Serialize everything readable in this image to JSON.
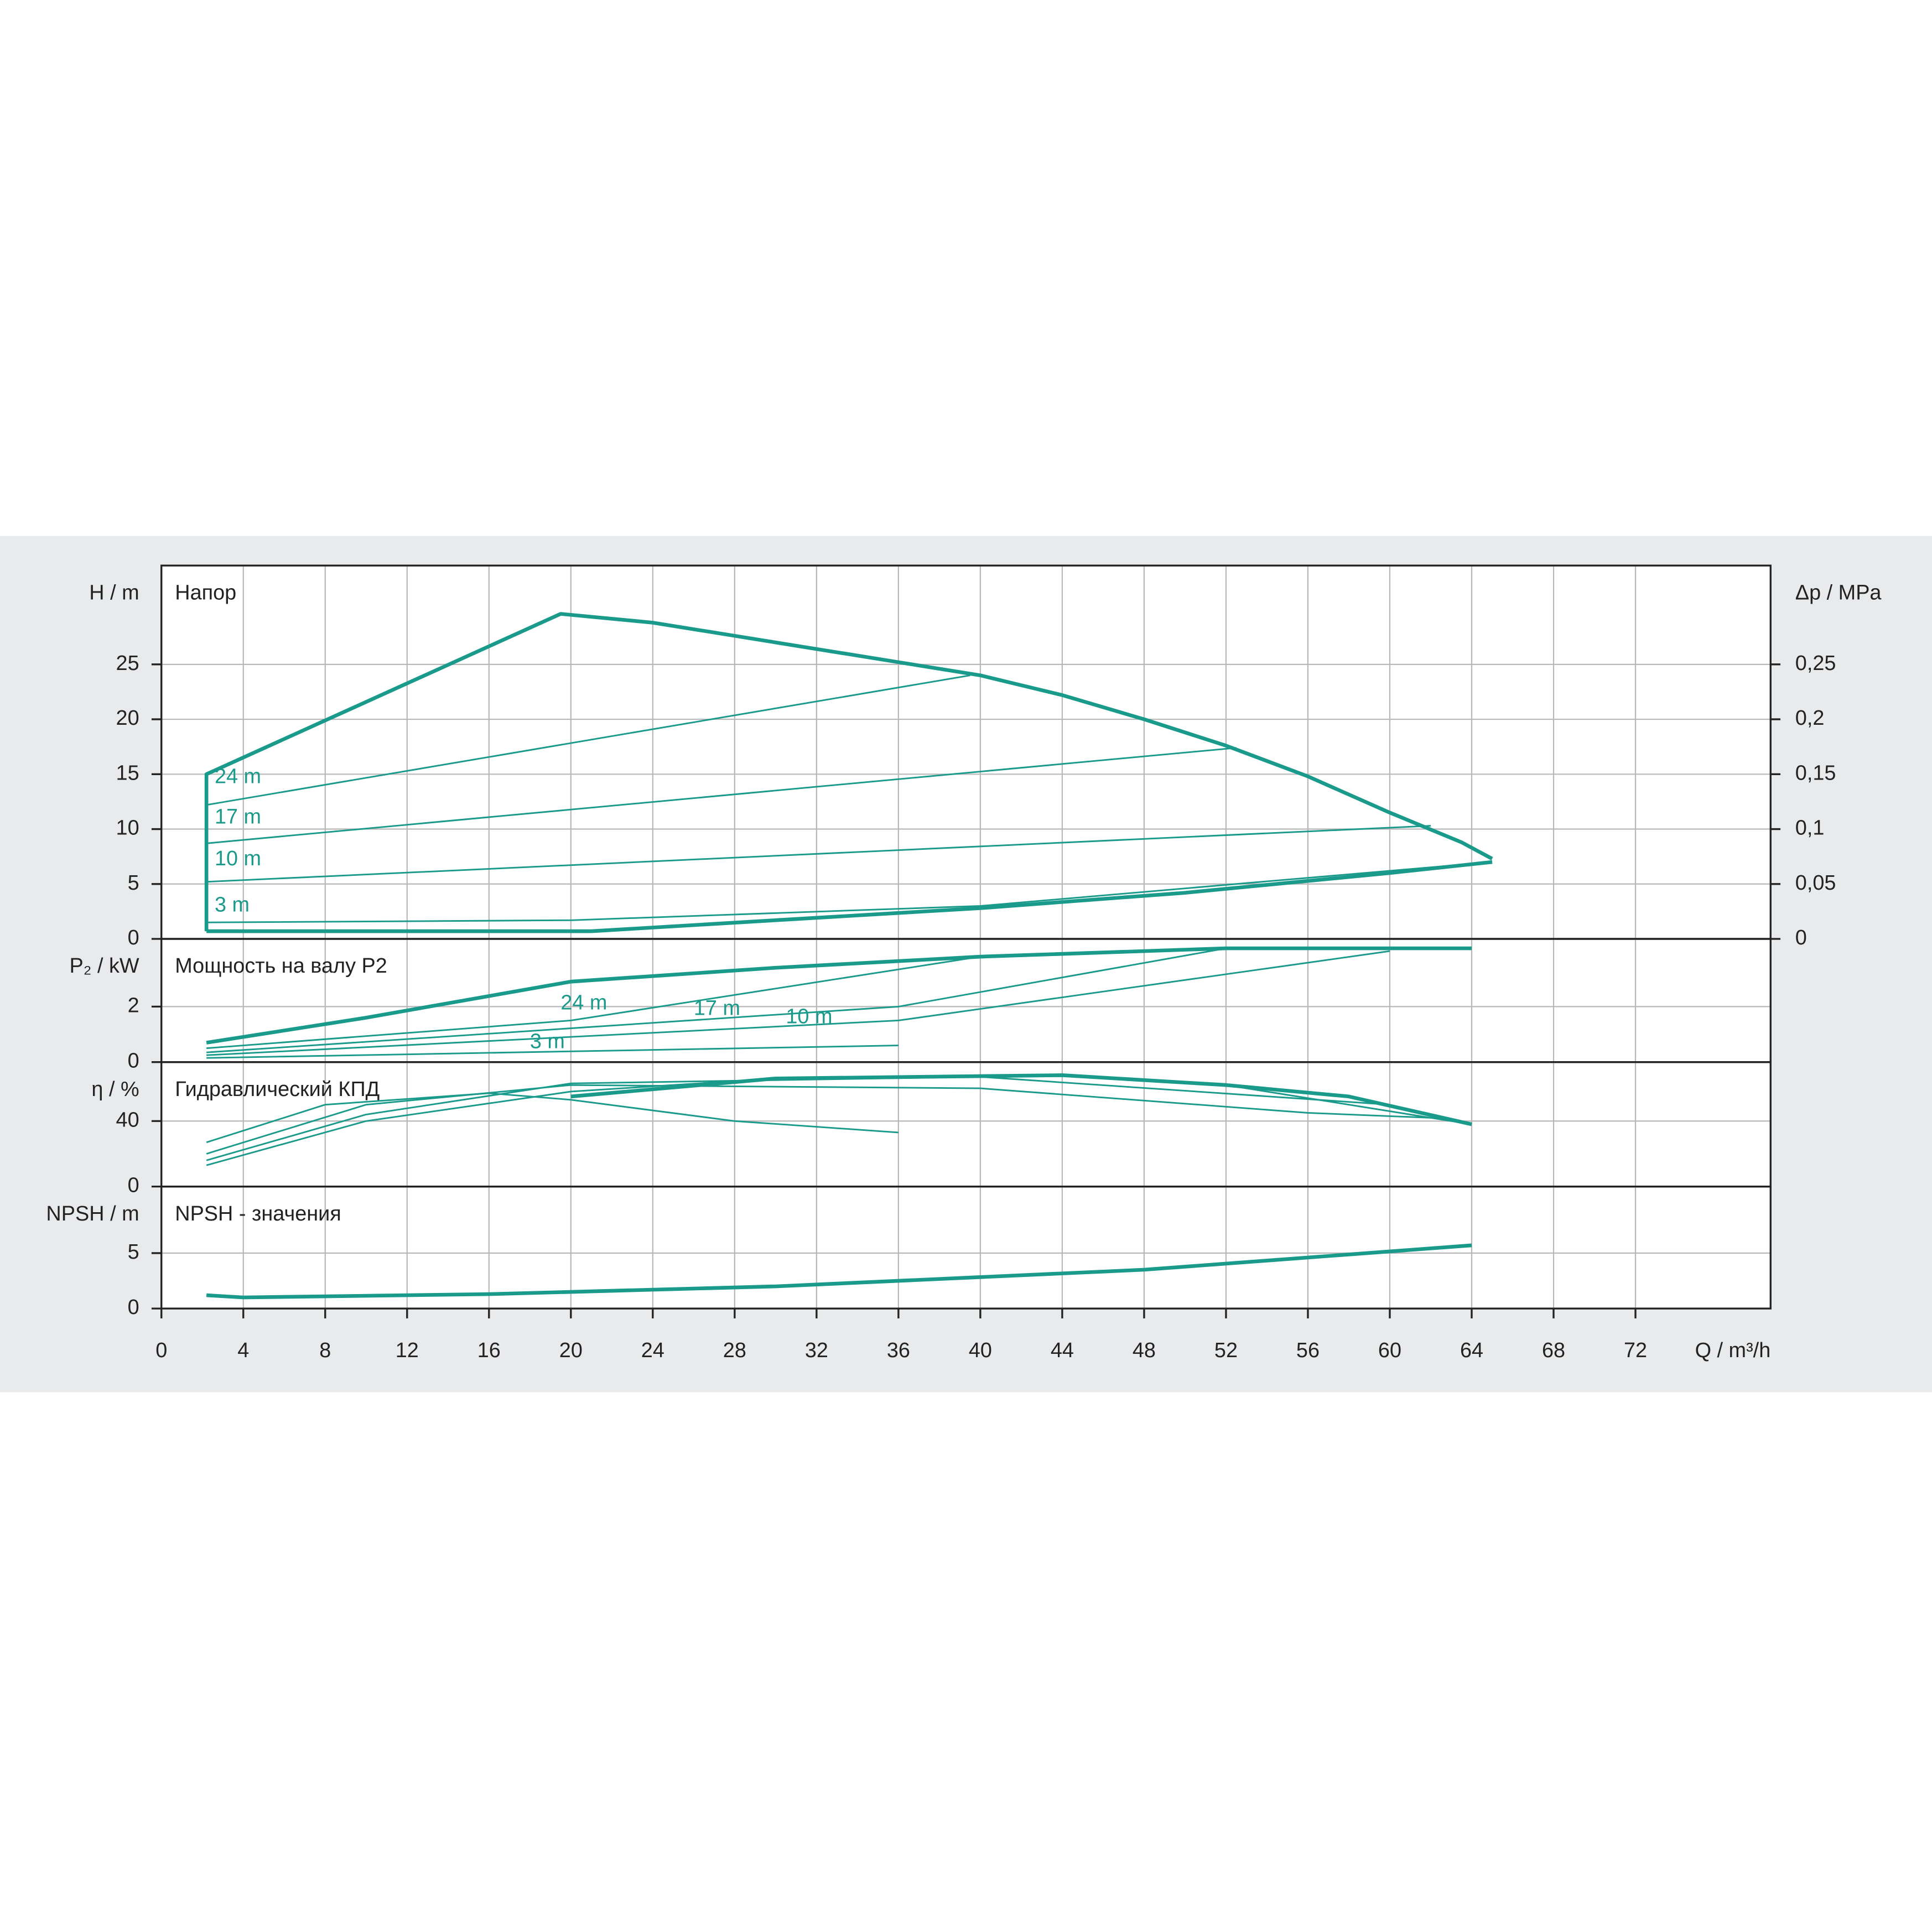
{
  "chart_data": [
    {
      "type": "line",
      "title": "Напор",
      "ylabel": "H / m",
      "y2label": "Δp / MPa",
      "ylim": [
        0,
        34
      ],
      "yticks": [
        0,
        5,
        10,
        15,
        20,
        25
      ],
      "y2lim": [
        0,
        0.34
      ],
      "y2ticks": [
        0,
        {
          "value": 0.05,
          "label": "0,05"
        },
        {
          "value": 0.1,
          "label": "0,1"
        },
        {
          "value": 0.15,
          "label": "0,15"
        },
        {
          "value": 0.2,
          "label": "0,2"
        },
        {
          "value": 0.25,
          "label": "0,25"
        }
      ],
      "grid": true,
      "series": [
        {
          "color": "#1a9a8b",
          "linewidth": 3,
          "x": [
            2.2,
            2.2,
            19.5,
            24,
            30,
            36,
            40,
            44,
            48,
            52,
            56,
            60,
            63.5,
            65
          ],
          "values": [
            0.7,
            15,
            29.6,
            28.8,
            27,
            25.2,
            24,
            22.2,
            20,
            17.6,
            14.8,
            11.5,
            8.8,
            7.3
          ]
        },
        {
          "color": "#1a9a8b",
          "linewidth": 3,
          "x": [
            2.2,
            21,
            30,
            40,
            50,
            60,
            65
          ],
          "values": [
            0.7,
            0.7,
            1.7,
            2.8,
            4.2,
            6,
            7
          ]
        },
        {
          "name": "24 m",
          "color": "#1a9a8b",
          "linewidth": 1.3,
          "x": [
            2.2,
            39.5
          ],
          "values": [
            12.2,
            24
          ]
        },
        {
          "name": "17 m",
          "color": "#1a9a8b",
          "linewidth": 1.3,
          "x": [
            2.2,
            52.5
          ],
          "values": [
            8.7,
            17.4
          ]
        },
        {
          "name": "10 m",
          "color": "#1a9a8b",
          "linewidth": 1.3,
          "x": [
            2.2,
            62
          ],
          "values": [
            5.2,
            10.3
          ]
        },
        {
          "name": "3 m",
          "color": "#1a9a8b",
          "linewidth": 1.3,
          "x": [
            2.2,
            20,
            40,
            65
          ],
          "values": [
            1.5,
            1.7,
            3,
            7
          ]
        }
      ],
      "annotations": [
        {
          "text": "24 m",
          "x": 2.6,
          "y": 14.7
        },
        {
          "text": "17 m",
          "x": 2.6,
          "y": 11
        },
        {
          "text": "10 m",
          "x": 2.6,
          "y": 7.2
        },
        {
          "text": "3 m",
          "x": 2.6,
          "y": 3
        }
      ]
    },
    {
      "type": "line",
      "title": "Мощность на валу P2",
      "ylabel": "P₂ / kW",
      "ylim": [
        0,
        4.44
      ],
      "yticks": [
        0,
        2
      ],
      "grid": true,
      "series": [
        {
          "color": "#1a9a8b",
          "linewidth": 3,
          "x": [
            2.2,
            10,
            20,
            30,
            40,
            52,
            64
          ],
          "values": [
            0.7,
            1.6,
            2.9,
            3.4,
            3.8,
            4.1,
            4.1
          ]
        },
        {
          "name": "24 m",
          "color": "#1a9a8b",
          "linewidth": 1.3,
          "x": [
            2.2,
            20,
            40
          ],
          "values": [
            0.5,
            1.5,
            3.8
          ]
        },
        {
          "name": "17 m",
          "color": "#1a9a8b",
          "linewidth": 1.3,
          "x": [
            2.2,
            36,
            52
          ],
          "values": [
            0.35,
            2,
            4.1
          ]
        },
        {
          "name": "10 m",
          "color": "#1a9a8b",
          "linewidth": 1.3,
          "x": [
            2.2,
            36,
            60
          ],
          "values": [
            0.25,
            1.5,
            4
          ]
        },
        {
          "name": "3 m",
          "color": "#1a9a8b",
          "linewidth": 1.3,
          "x": [
            2.2,
            36
          ],
          "values": [
            0.15,
            0.6
          ]
        }
      ],
      "annotations": [
        {
          "text": "24 m",
          "x": 19.5,
          "y": 2.1
        },
        {
          "text": "17 m",
          "x": 26,
          "y": 1.9
        },
        {
          "text": "10 m",
          "x": 30.5,
          "y": 1.6
        },
        {
          "text": "3 m",
          "x": 18,
          "y": 0.7
        }
      ]
    },
    {
      "type": "line",
      "title": "Гидравлический КПД",
      "ylabel": "η / %",
      "ylim": [
        0,
        76
      ],
      "yticks": [
        0,
        40
      ],
      "grid": true,
      "series": [
        {
          "color": "#1a9a8b",
          "linewidth": 3,
          "x": [
            20,
            30,
            44,
            52,
            58,
            64
          ],
          "values": [
            55,
            66,
            68,
            62,
            55,
            38
          ]
        },
        {
          "color": "#1a9a8b",
          "linewidth": 1.3,
          "x": [
            2.2,
            10,
            20,
            30,
            44,
            52,
            64
          ],
          "values": [
            13,
            40,
            58,
            66,
            68,
            62,
            38
          ]
        },
        {
          "color": "#1a9a8b",
          "linewidth": 1.3,
          "x": [
            2.2,
            10,
            20,
            40,
            60
          ],
          "values": [
            16,
            44,
            63,
            67,
            50
          ]
        },
        {
          "color": "#1a9a8b",
          "linewidth": 1.3,
          "x": [
            2.2,
            10,
            20,
            40,
            56,
            62
          ],
          "values": [
            20,
            50,
            62,
            60,
            45,
            42
          ]
        },
        {
          "color": "#1a9a8b",
          "linewidth": 1.3,
          "x": [
            2.2,
            8,
            16,
            20,
            28,
            36
          ],
          "values": [
            27,
            50,
            57,
            53,
            40,
            33
          ]
        }
      ]
    },
    {
      "type": "line",
      "title": "NPSH - значения",
      "ylabel": "NPSH / m",
      "xlabel": "Q / m³/h",
      "ylim": [
        0,
        11
      ],
      "yticks": [
        0,
        5
      ],
      "xlim": [
        0,
        78.6
      ],
      "xticks": [
        0,
        4,
        8,
        12,
        16,
        20,
        24,
        28,
        32,
        36,
        40,
        44,
        48,
        52,
        56,
        60,
        64,
        68,
        72
      ],
      "grid": true,
      "series": [
        {
          "color": "#1a9a8b",
          "linewidth": 3,
          "x": [
            2.2,
            4,
            16,
            30,
            48,
            64
          ],
          "values": [
            1.2,
            1,
            1.3,
            2,
            3.5,
            5.7
          ]
        }
      ]
    }
  ]
}
